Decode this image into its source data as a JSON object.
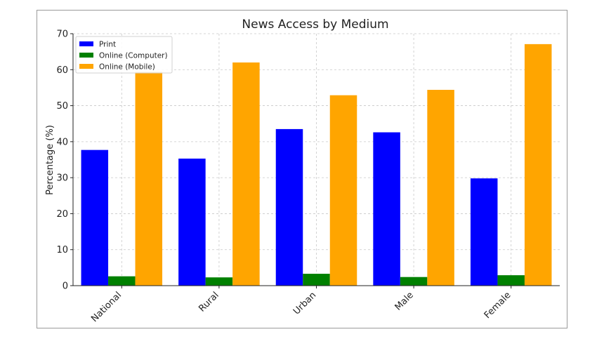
{
  "chart_data": {
    "type": "bar",
    "title": "News Access by Medium",
    "xlabel": "",
    "ylabel": "Percentage (%)",
    "categories": [
      "National",
      "Rural",
      "Urban",
      "Male",
      "Female"
    ],
    "series": [
      {
        "name": "Print",
        "color": "#0000ff",
        "values": [
          37.7,
          35.3,
          43.5,
          42.6,
          29.8
        ]
      },
      {
        "name": "Online (Computer)",
        "color": "#008000",
        "values": [
          2.6,
          2.3,
          3.3,
          2.4,
          2.9
        ]
      },
      {
        "name": "Online (Mobile)",
        "color": "#ffa500",
        "values": [
          59.4,
          62.0,
          52.9,
          54.4,
          67.1
        ]
      }
    ],
    "ylim": [
      0,
      70
    ],
    "yticks": [
      0,
      10,
      20,
      30,
      40,
      50,
      60,
      70
    ],
    "grid": true,
    "legend": "top-left"
  }
}
